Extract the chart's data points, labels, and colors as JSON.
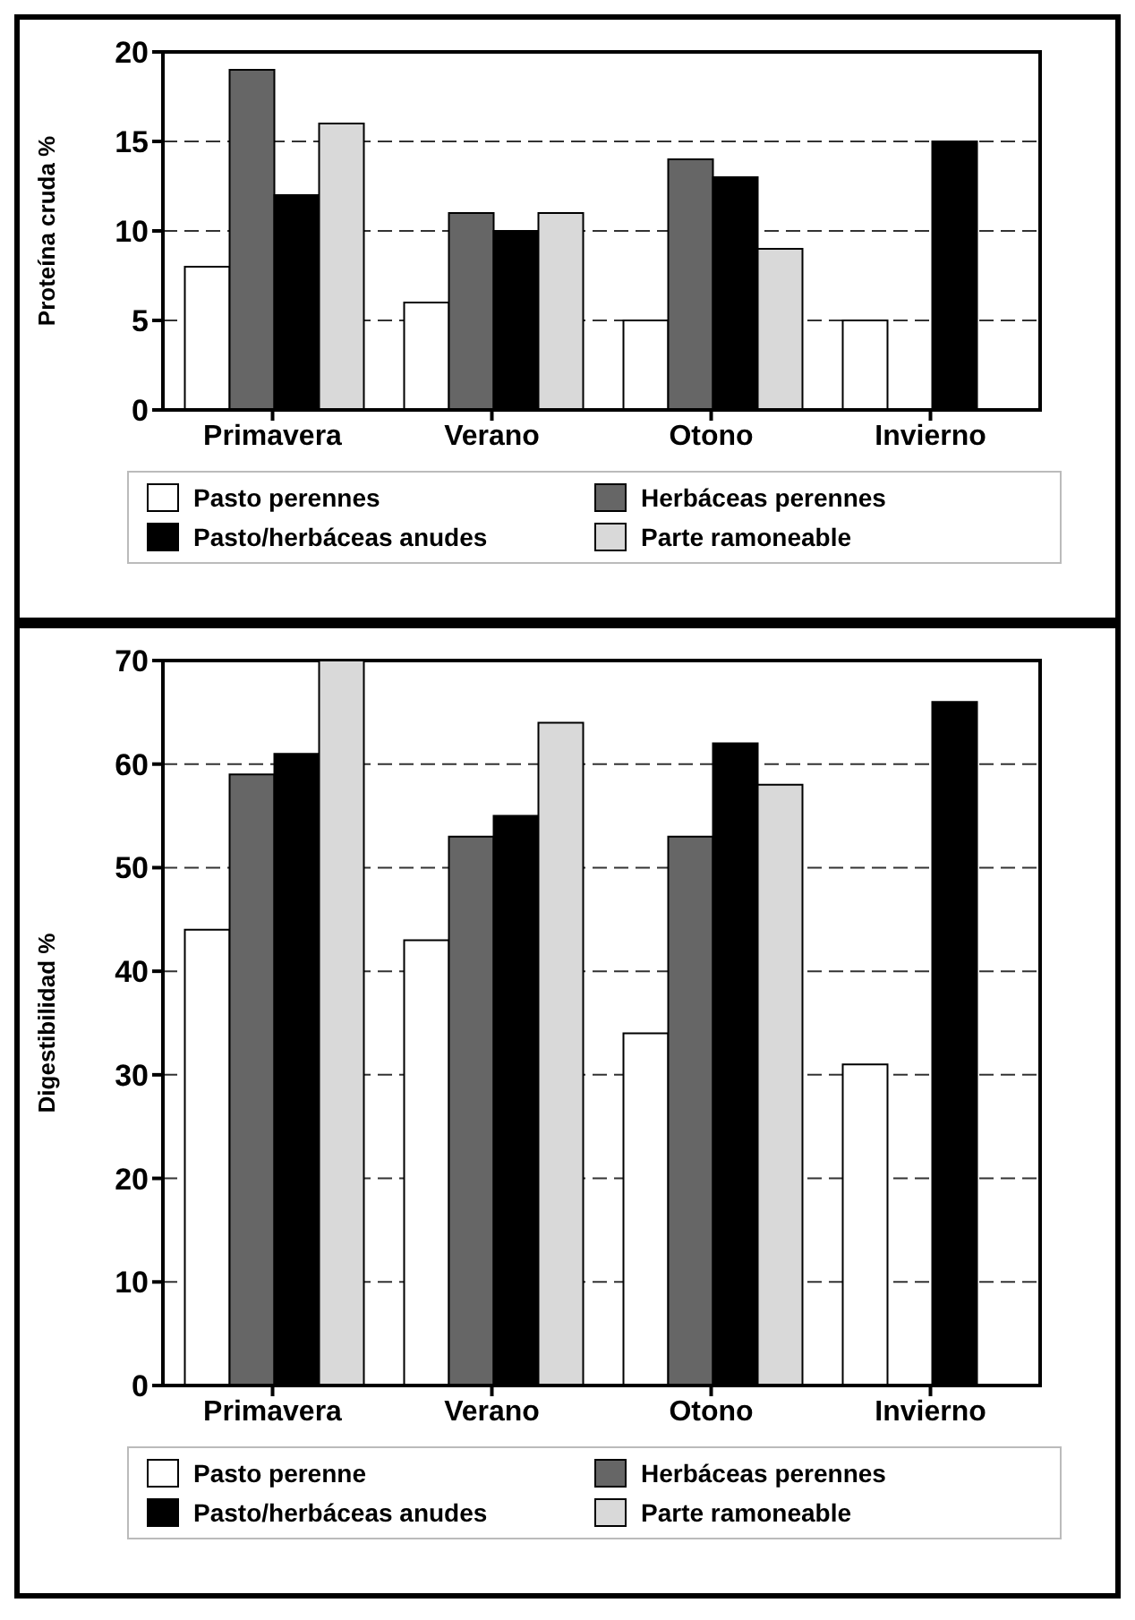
{
  "chart_data": [
    {
      "type": "bar",
      "ylabel": "Proteína cruda %",
      "categories": [
        "Primavera",
        "Verano",
        "Otono",
        "Invierno"
      ],
      "ylim": [
        0,
        20
      ],
      "yticks": [
        0,
        5,
        10,
        15,
        20
      ],
      "grid": "y",
      "legend": "bottom",
      "series": [
        {
          "name": "Pasto perennes",
          "color": "#ffffff",
          "values": [
            8,
            6,
            5,
            5
          ]
        },
        {
          "name": "Herbáceas perennes",
          "color": "#666666",
          "values": [
            19,
            11,
            14,
            null
          ]
        },
        {
          "name": "Pasto/herbáceas anudes",
          "color": "#000000",
          "values": [
            12,
            10,
            13,
            15
          ]
        },
        {
          "name": "Parte ramoneable",
          "color": "#d9d9d9",
          "values": [
            16,
            11,
            9,
            null
          ]
        }
      ]
    },
    {
      "type": "bar",
      "ylabel": "Digestibilidad %",
      "categories": [
        "Primavera",
        "Verano",
        "Otono",
        "Invierno"
      ],
      "ylim": [
        0,
        70
      ],
      "yticks": [
        0,
        10,
        20,
        30,
        40,
        50,
        60,
        70
      ],
      "grid": "y",
      "legend": "bottom",
      "series": [
        {
          "name": "Pasto perenne",
          "color": "#ffffff",
          "values": [
            44,
            43,
            34,
            31
          ]
        },
        {
          "name": "Herbáceas perennes",
          "color": "#666666",
          "values": [
            59,
            53,
            53,
            null
          ]
        },
        {
          "name": "Pasto/herbáceas anudes",
          "color": "#000000",
          "values": [
            61,
            55,
            62,
            66
          ]
        },
        {
          "name": "Parte ramoneable",
          "color": "#d9d9d9",
          "values": [
            70,
            64,
            58,
            null
          ]
        }
      ]
    }
  ]
}
